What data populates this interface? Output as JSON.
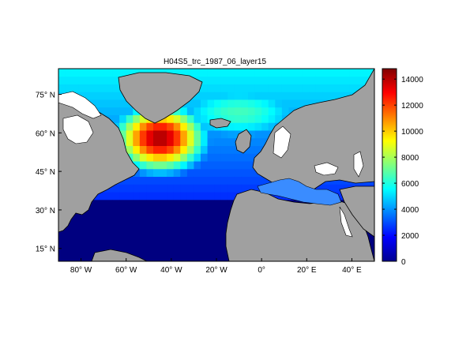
{
  "title": "H04S5_trc_1987_06_layer15",
  "map": {
    "lon_range": [
      -90,
      50
    ],
    "lat_range": [
      10,
      85
    ],
    "lon_ticks": [
      {
        "value": -80,
        "label": "80° W"
      },
      {
        "value": -60,
        "label": "60° W"
      },
      {
        "value": -40,
        "label": "40° W"
      },
      {
        "value": -20,
        "label": "20° W"
      },
      {
        "value": 0,
        "label": "0°"
      },
      {
        "value": 20,
        "label": "20° E"
      },
      {
        "value": 40,
        "label": "40° E"
      }
    ],
    "lat_ticks": [
      {
        "value": 75,
        "label": "75° N"
      },
      {
        "value": 60,
        "label": "60° N"
      },
      {
        "value": 45,
        "label": "45° N"
      },
      {
        "value": 30,
        "label": "30° N"
      },
      {
        "value": 15,
        "label": "15° N"
      }
    ],
    "land_color": "#a0a0a0",
    "coast_color": "#000000"
  },
  "colorbar": {
    "min": 0,
    "max": 14800,
    "ticks": [
      0,
      2000,
      4000,
      6000,
      8000,
      10000,
      12000,
      14000
    ],
    "colormap": "jet"
  }
}
